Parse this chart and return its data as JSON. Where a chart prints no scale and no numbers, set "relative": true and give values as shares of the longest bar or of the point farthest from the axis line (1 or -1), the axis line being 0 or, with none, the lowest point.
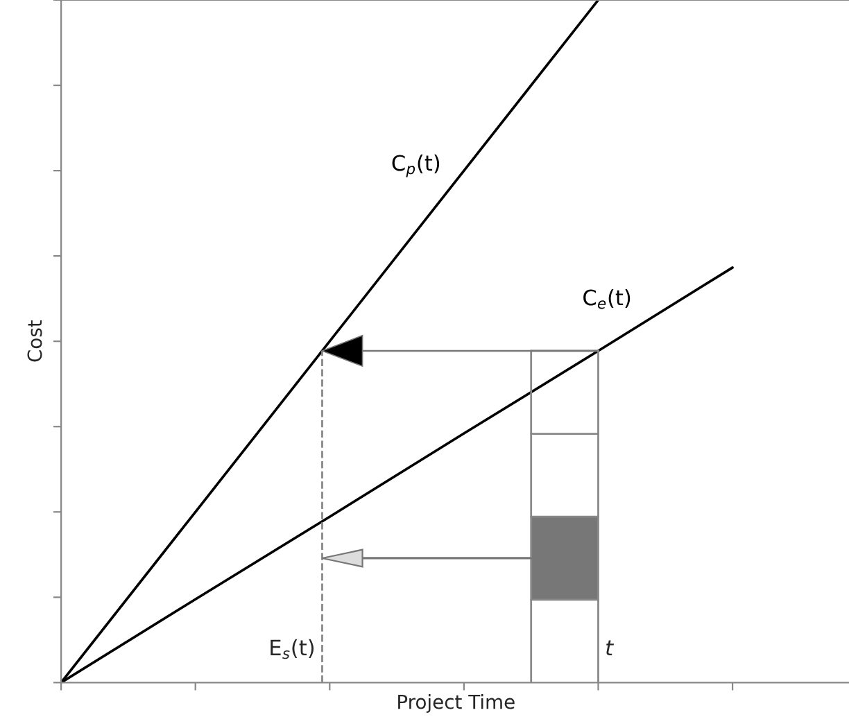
{
  "chart_data": {
    "type": "line",
    "relative": true,
    "xlabel": "Project Time",
    "ylabel": "Cost",
    "tick_labels": false,
    "grid": false,
    "legend": false,
    "categories": [
      null,
      null,
      null,
      null,
      null,
      null
    ],
    "series": [
      {
        "name": "C$_{p}$(t)",
        "color": "#000000",
        "values": [
          0,
          0.25,
          0.5,
          0.75,
          1,
          null
        ]
      },
      {
        "name": "C$_{e}$(t)",
        "color": "#000000",
        "values": [
          0,
          0.122,
          0.243,
          0.365,
          0.486,
          0.608
        ]
      }
    ],
    "annotations": [
      "E$_{s}$(t)",
      "t"
    ]
  }
}
